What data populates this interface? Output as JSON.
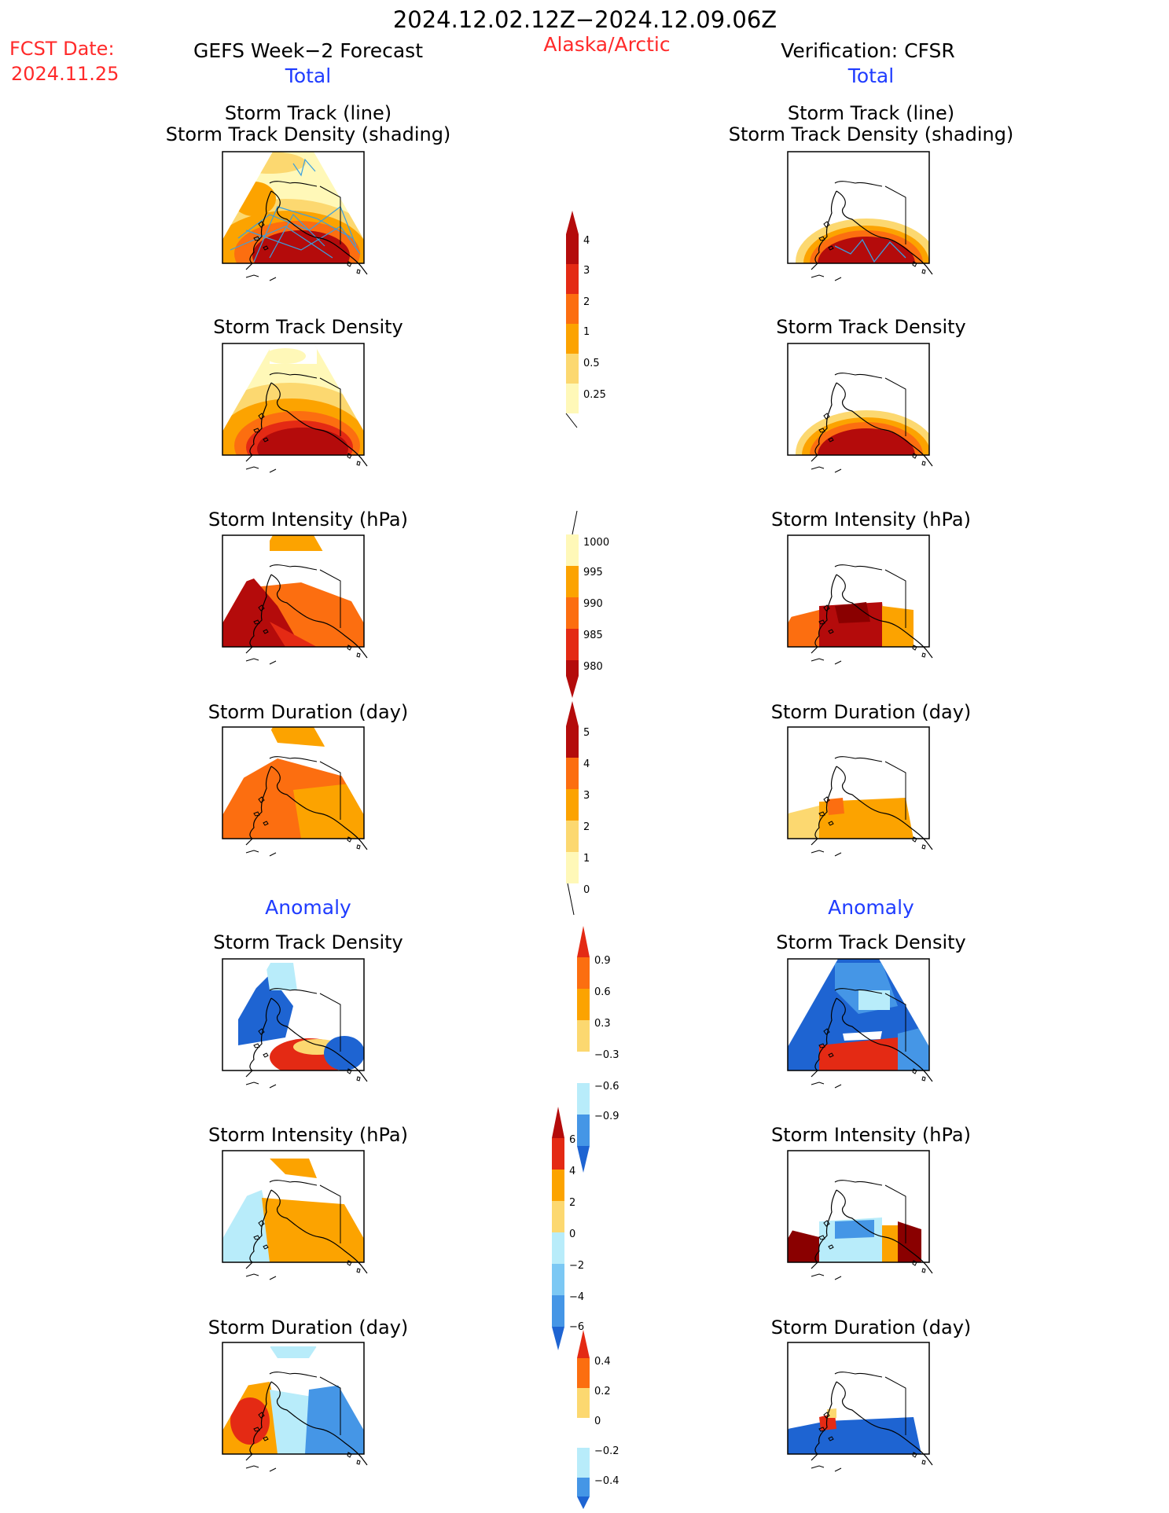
{
  "header": {
    "date_range": "2024.12.02.12Z−2024.12.09.06Z",
    "fcst_label": "FCST Date:",
    "fcst_date": "2024.11.25",
    "left_title": "GEFS Week−2 Forecast",
    "region": "Alaska/Arctic",
    "right_title": "Verification: CFSR"
  },
  "sections": {
    "total": "Total",
    "anomaly": "Anomaly"
  },
  "panel_titles": {
    "track_line": "Storm Track (line)",
    "track_density_shading": "Storm Track Density (shading)",
    "density": "Storm Track Density",
    "intensity": "Storm Intensity (hPa)",
    "duration": "Storm Duration (day)"
  },
  "colorbars": {
    "density_total": [
      "4",
      "3",
      "2",
      "1",
      "0.5",
      "0.25"
    ],
    "intensity_total": [
      "1000",
      "995",
      "990",
      "985",
      "980"
    ],
    "duration_total": [
      "5",
      "4",
      "3",
      "2",
      "1",
      "0"
    ],
    "density_anom": [
      "0.9",
      "0.6",
      "0.3",
      "−0.3",
      "−0.6",
      "−0.9"
    ],
    "intensity_anom": [
      "6",
      "4",
      "2",
      "0",
      "−2",
      "−4",
      "−6"
    ],
    "duration_anom": [
      "0.4",
      "0.2",
      "0",
      "−0.2",
      "−0.4"
    ]
  },
  "colors": {
    "c0": "#fff8b8",
    "c1": "#fcd870",
    "c2": "#fca300",
    "c3": "#fc6e10",
    "c4": "#e42a14",
    "c5": "#b40b0b",
    "c6": "#8a0000",
    "b1": "#b8ecfa",
    "b2": "#7cc8f4",
    "b3": "#4596e6",
    "b4": "#1e64d2",
    "track": "#3a9fe0",
    "title_red": "#ff2a2a",
    "title_blue": "#1f3cff"
  }
}
